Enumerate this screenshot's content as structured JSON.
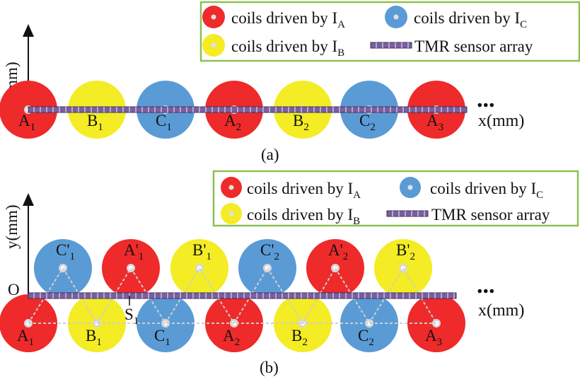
{
  "colors": {
    "coil_A": "#ee2a2a",
    "coil_B": "#f4ec24",
    "coil_C": "#5a9bd5",
    "legend_border": "#8cc152",
    "sensor_fill": "#7a5fa0",
    "sensor_stroke": "#3c2f5a"
  },
  "legend": {
    "coil_prefix": "coils driven by I",
    "sub_A": "A",
    "sub_B": "B",
    "sub_C": "C",
    "sensor": "TMR sensor array"
  },
  "axes": {
    "x_label": "x(mm)",
    "y_label": "y(mm)",
    "origin": "O",
    "ellipsis": "..."
  },
  "panels": {
    "a": {
      "caption": "(a)",
      "coils": [
        {
          "type": "A",
          "name": "A",
          "sub": "1"
        },
        {
          "type": "B",
          "name": "B",
          "sub": "1"
        },
        {
          "type": "C",
          "name": "C",
          "sub": "1"
        },
        {
          "type": "A",
          "name": "A",
          "sub": "2"
        },
        {
          "type": "B",
          "name": "B",
          "sub": "2"
        },
        {
          "type": "C",
          "name": "C",
          "sub": "2"
        },
        {
          "type": "A",
          "name": "A",
          "sub": "3"
        }
      ]
    },
    "b": {
      "caption": "(b)",
      "sensor_point": {
        "name": "S",
        "sub": "1"
      },
      "bottom_coils": [
        {
          "type": "A",
          "name": "A",
          "sub": "1"
        },
        {
          "type": "B",
          "name": "B",
          "sub": "1"
        },
        {
          "type": "C",
          "name": "C",
          "sub": "1"
        },
        {
          "type": "A",
          "name": "A",
          "sub": "2"
        },
        {
          "type": "B",
          "name": "B",
          "sub": "2"
        },
        {
          "type": "C",
          "name": "C",
          "sub": "2"
        },
        {
          "type": "A",
          "name": "A",
          "sub": "3"
        }
      ],
      "top_coils": [
        {
          "type": "C",
          "name": "C'",
          "sub": "1"
        },
        {
          "type": "A",
          "name": "A'",
          "sub": "1"
        },
        {
          "type": "B",
          "name": "B'",
          "sub": "1"
        },
        {
          "type": "C",
          "name": "C'",
          "sub": "2"
        },
        {
          "type": "A",
          "name": "A'",
          "sub": "2"
        },
        {
          "type": "B",
          "name": "B'",
          "sub": "2"
        }
      ]
    }
  }
}
